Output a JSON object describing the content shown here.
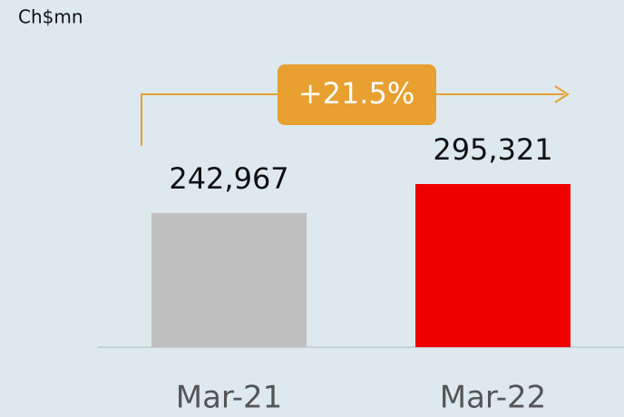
{
  "chart_data": {
    "type": "bar",
    "unit_label": "Ch$mn",
    "categories": [
      "Mar-21",
      "Mar-22"
    ],
    "values": [
      242967,
      295321
    ],
    "value_labels": [
      "242,967",
      "295,321"
    ],
    "colors": [
      "#c0c0c0",
      "#ee0000"
    ],
    "annotation": "+21.5%"
  }
}
